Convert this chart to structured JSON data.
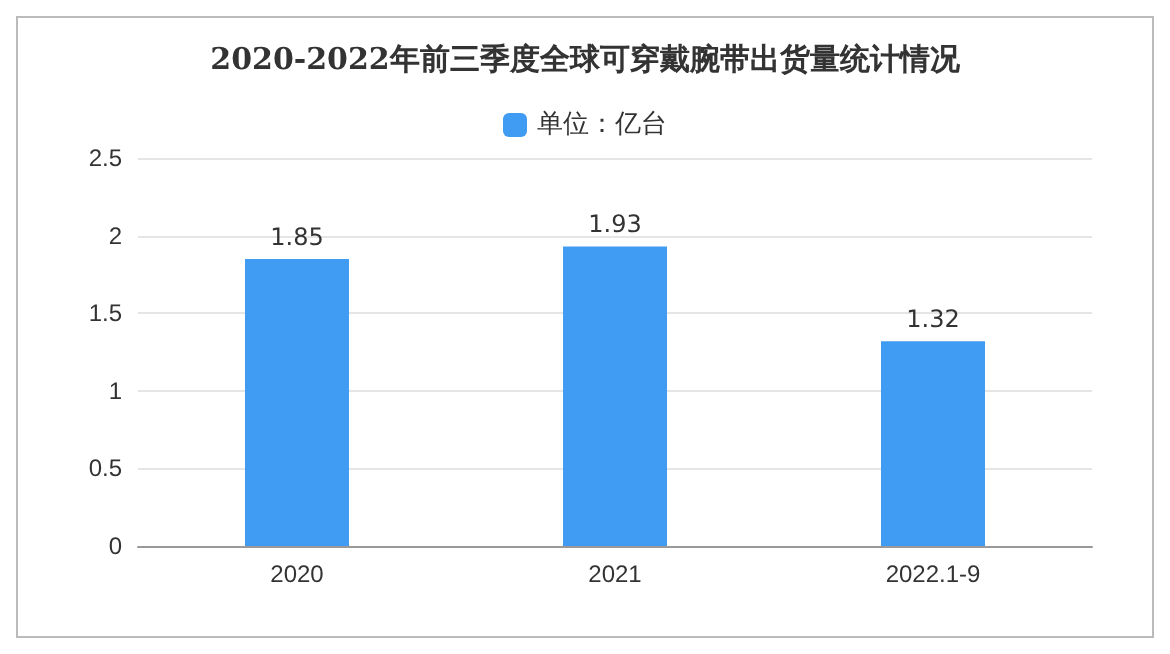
{
  "chart_data": {
    "type": "bar",
    "title": "2020-2022年前三季度全球可穿戴腕带出货量统计情况",
    "categories": [
      "2020",
      "2021",
      "2022.1-9"
    ],
    "series": [
      {
        "name": "单位：亿台",
        "color": "#3f9cf2",
        "values": [
          1.85,
          1.93,
          1.32
        ]
      }
    ],
    "ylim": [
      0,
      2.5
    ],
    "yticks": [
      0,
      0.5,
      1,
      1.5,
      2,
      2.5
    ],
    "grid": "y",
    "legend": "top",
    "data_labels": true
  }
}
